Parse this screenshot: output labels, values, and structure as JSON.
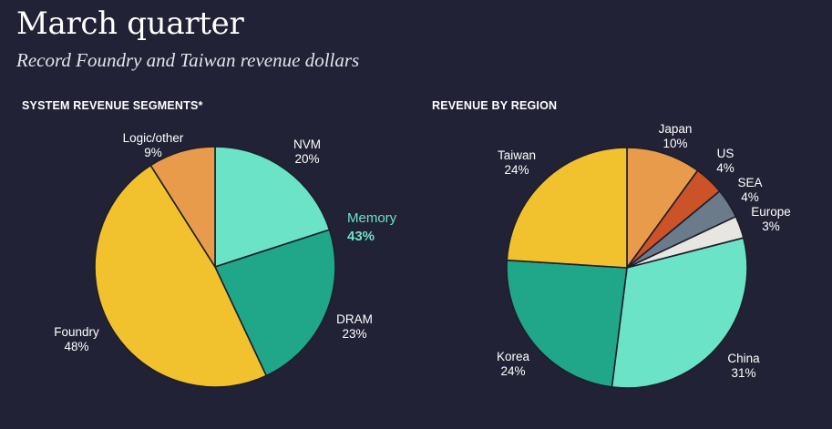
{
  "page": {
    "title": "March quarter",
    "subtitle": "Record Foundry and Taiwan revenue dollars"
  },
  "chart_data": [
    {
      "type": "pie",
      "title": "SYSTEM REVENUE SEGMENTS*",
      "slices": [
        {
          "label": "NVM",
          "value": 20,
          "display": "20%",
          "color": "#6ae3c6"
        },
        {
          "label": "DRAM",
          "value": 23,
          "display": "23%",
          "color": "#20a688"
        },
        {
          "label": "Foundry",
          "value": 48,
          "display": "48%",
          "color": "#f2c12e"
        },
        {
          "label": "Logic/other",
          "value": 9,
          "display": "9%",
          "color": "#e89b4a"
        }
      ],
      "annotation": {
        "label": "Memory",
        "value": "43%",
        "color": "#6ae3c6",
        "covers": [
          "NVM",
          "DRAM"
        ]
      }
    },
    {
      "type": "pie",
      "title": "REVENUE BY REGION",
      "slices": [
        {
          "label": "Japan",
          "value": 10,
          "display": "10%",
          "color": "#e89b4a"
        },
        {
          "label": "US",
          "value": 4,
          "display": "4%",
          "color": "#cc5228"
        },
        {
          "label": "SEA",
          "value": 4,
          "display": "4%",
          "color": "#6b7b8a"
        },
        {
          "label": "Europe",
          "value": 3,
          "display": "3%",
          "color": "#e8e6e0"
        },
        {
          "label": "China",
          "value": 31,
          "display": "31%",
          "color": "#6ae3c6"
        },
        {
          "label": "Korea",
          "value": 24,
          "display": "24%",
          "color": "#20a688"
        },
        {
          "label": "Taiwan",
          "value": 24,
          "display": "24%",
          "color": "#f2c12e"
        }
      ]
    }
  ]
}
